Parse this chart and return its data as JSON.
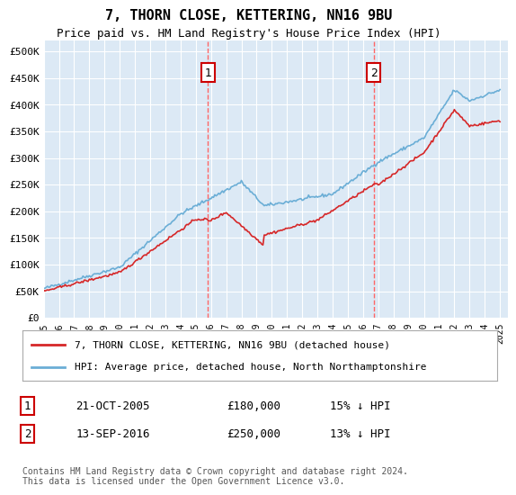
{
  "title": "7, THORN CLOSE, KETTERING, NN16 9BU",
  "subtitle": "Price paid vs. HM Land Registry's House Price Index (HPI)",
  "ylabel_ticks": [
    "£0",
    "£50K",
    "£100K",
    "£150K",
    "£200K",
    "£250K",
    "£300K",
    "£350K",
    "£400K",
    "£450K",
    "£500K"
  ],
  "ytick_values": [
    0,
    50000,
    100000,
    150000,
    200000,
    250000,
    300000,
    350000,
    400000,
    450000,
    500000
  ],
  "ylim": [
    0,
    520000
  ],
  "xlim_start": 1995.0,
  "xlim_end": 2025.5,
  "hpi_color": "#6baed6",
  "price_color": "#d62728",
  "dashed_color": "#ff6666",
  "transaction1_x": 2005.8,
  "transaction1_y": 180000,
  "transaction1_label": "1",
  "transaction2_x": 2016.7,
  "transaction2_y": 250000,
  "transaction2_label": "2",
  "legend_line1": "7, THORN CLOSE, KETTERING, NN16 9BU (detached house)",
  "legend_line2": "HPI: Average price, detached house, North Northamptonshire",
  "table_row1": [
    "1",
    "21-OCT-2005",
    "£180,000",
    "15% ↓ HPI"
  ],
  "table_row2": [
    "2",
    "13-SEP-2016",
    "£250,000",
    "13% ↓ HPI"
  ],
  "footnote": "Contains HM Land Registry data © Crown copyright and database right 2024.\nThis data is licensed under the Open Government Licence v3.0.",
  "background_color": "#ffffff",
  "plot_bg_color": "#dce9f5",
  "grid_color": "#ffffff",
  "xtick_years": [
    1995,
    1996,
    1997,
    1998,
    1999,
    2000,
    2001,
    2002,
    2003,
    2004,
    2005,
    2006,
    2007,
    2008,
    2009,
    2010,
    2011,
    2012,
    2013,
    2014,
    2015,
    2016,
    2017,
    2018,
    2019,
    2020,
    2021,
    2022,
    2023,
    2024,
    2025
  ]
}
